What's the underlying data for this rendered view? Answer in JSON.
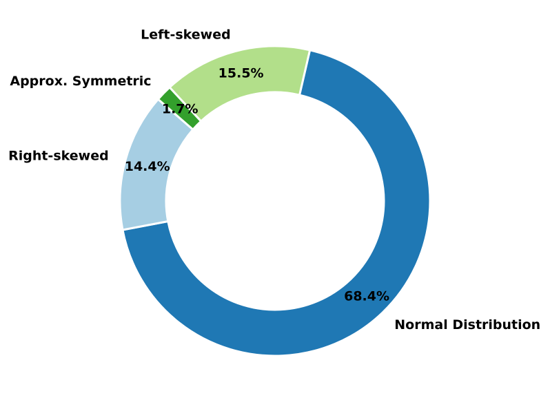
{
  "chart_data": {
    "type": "pie",
    "variant": "donut",
    "title": "",
    "categories": [
      "Normal Distribution",
      "Right-skewed",
      "Approx. Symmetric",
      "Left-skewed"
    ],
    "values": [
      68.4,
      14.4,
      1.7,
      15.5
    ],
    "percent_labels": [
      "68.4%",
      "14.4%",
      "1.7%",
      "15.5%"
    ],
    "colors": [
      "#1f78b4",
      "#a6cee3",
      "#33a02c",
      "#b2df8a"
    ],
    "slice_edge_color": "#ffffff",
    "legend": "none"
  }
}
